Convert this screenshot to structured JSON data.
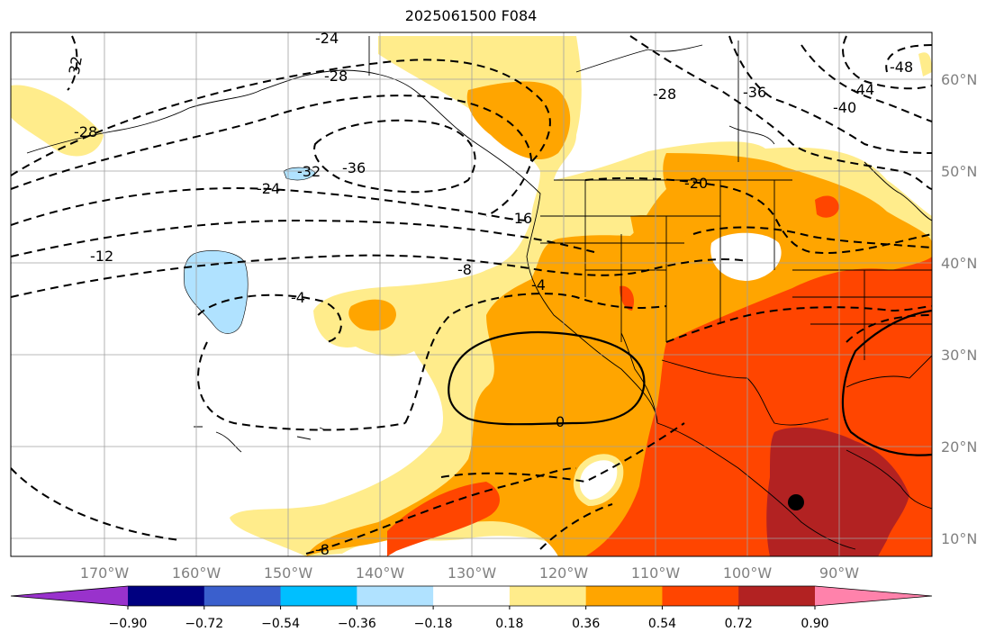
{
  "title": "2025061500 F084",
  "lat_labels": [
    "60°N",
    "50°N",
    "40°N",
    "30°N",
    "20°N",
    "10°N"
  ],
  "lon_labels": [
    "170°W",
    "160°W",
    "150°W",
    "140°W",
    "130°W",
    "120°W",
    "110°W",
    "100°W",
    "90°W"
  ],
  "contour_labels": [
    "-24",
    "-28",
    "-32",
    "-28",
    "-36",
    "-32",
    "-24",
    "-12",
    "-8",
    "-4",
    "0",
    "-16",
    "-20",
    "-28",
    "-36",
    "-40",
    "-44",
    "-48",
    "-8",
    "-4"
  ],
  "colorbar": {
    "colors": [
      "#9932cc",
      "#000080",
      "#3a5fcd",
      "#00bfff",
      "#b0e2ff",
      "#ffffff",
      "#ffec8b",
      "#ffa500",
      "#ff4500",
      "#b22222",
      "#ff82ab"
    ],
    "tick_labels": [
      "−0.90",
      "−0.72",
      "−0.54",
      "−0.36",
      "−0.18",
      "0.18",
      "0.36",
      "0.54",
      "0.72",
      "0.90"
    ]
  },
  "marker": {
    "label": "storm-center"
  }
}
